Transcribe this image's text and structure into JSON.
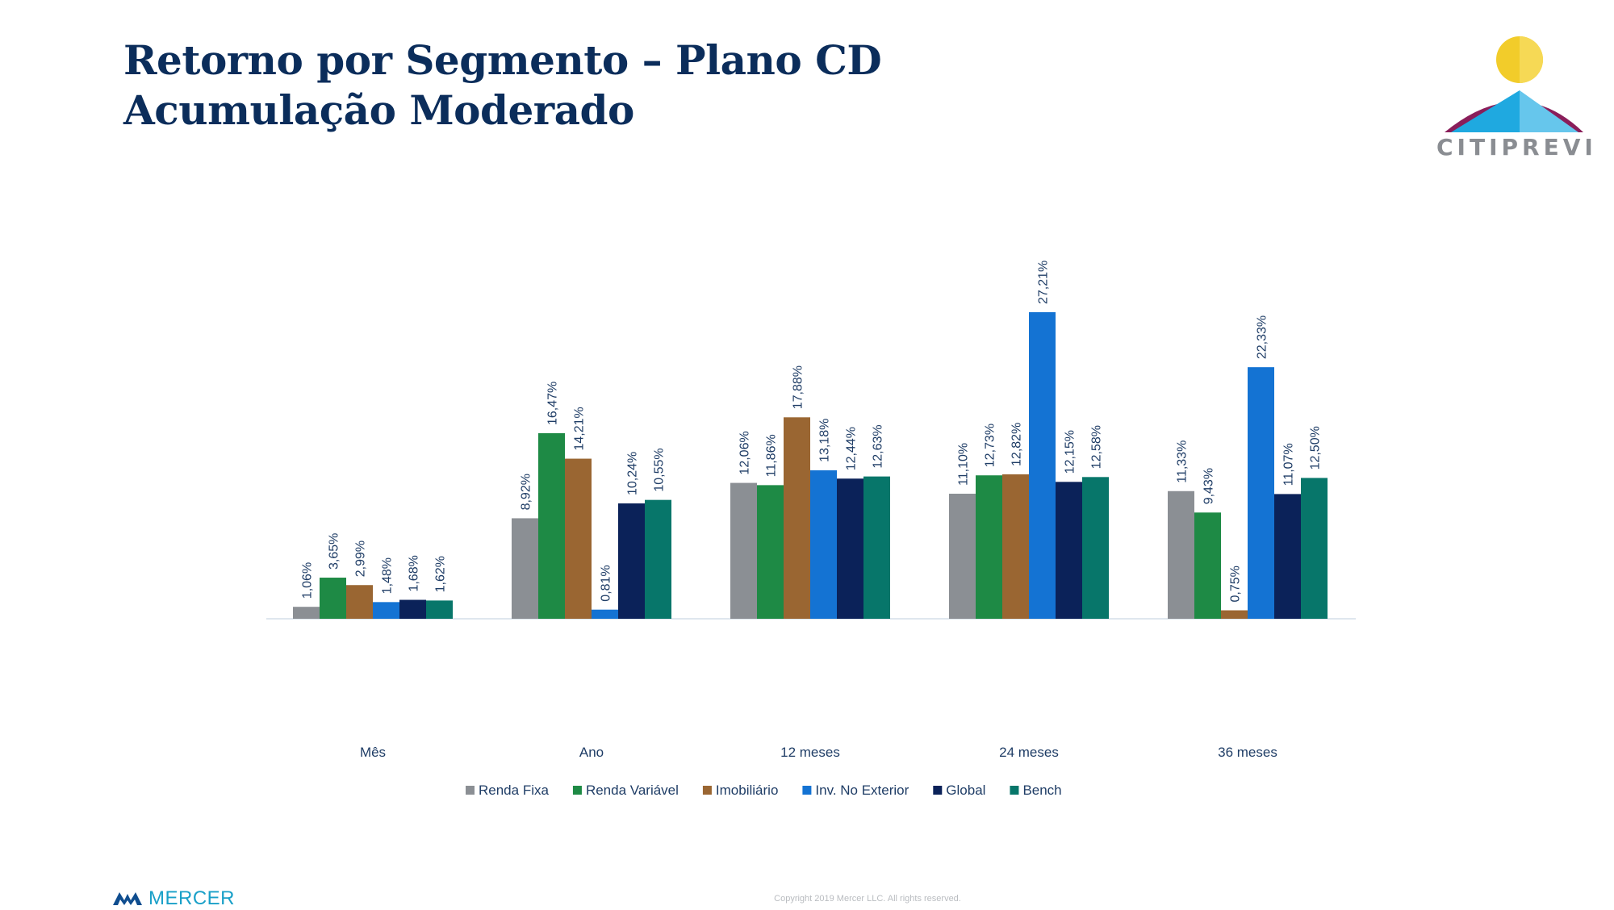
{
  "slide": {
    "title": "Retorno por Segmento – Plano CD Acumulação Moderado",
    "logo_text": "CITIPREVI",
    "footer_brand": "MERCER",
    "copyright": "Copyright 2019 Mercer LLC. All rights reserved."
  },
  "colors": {
    "title": "#0b2d5b",
    "label": "#1f3d66",
    "axis": "#dfe7ee"
  },
  "chart_data": {
    "type": "bar",
    "categories": [
      "Mês",
      "Ano",
      "12 meses",
      "24 meses",
      "36 meses"
    ],
    "series": [
      {
        "name": "Renda Fixa",
        "color": "#8b8f94",
        "values": [
          1.06,
          8.92,
          12.06,
          11.1,
          11.33
        ],
        "labels": [
          "1,06%",
          "8,92%",
          "12,06%",
          "11,10%",
          "11,33%"
        ]
      },
      {
        "name": "Renda Variável",
        "color": "#1e8a45",
        "values": [
          3.65,
          16.47,
          11.86,
          12.73,
          9.43
        ],
        "labels": [
          "3,65%",
          "16,47%",
          "11,86%",
          "12,73%",
          "9,43%"
        ]
      },
      {
        "name": "Imobiliário",
        "color": "#9a6632",
        "values": [
          2.99,
          14.21,
          17.88,
          12.82,
          0.75
        ],
        "labels": [
          "2,99%",
          "14,21%",
          "17,88%",
          "12,82%",
          "0,75%"
        ]
      },
      {
        "name": "Inv. No Exterior",
        "color": "#1473d3",
        "values": [
          1.48,
          0.81,
          13.18,
          27.21,
          22.33
        ],
        "labels": [
          "1,48%",
          "0,81%",
          "13,18%",
          "27,21%",
          "22,33%"
        ]
      },
      {
        "name": "Global",
        "color": "#0b2259",
        "values": [
          1.68,
          10.24,
          12.44,
          12.15,
          11.07
        ],
        "labels": [
          "1,68%",
          "10,24%",
          "12,44%",
          "12,15%",
          "11,07%"
        ]
      },
      {
        "name": "Bench",
        "color": "#07766a",
        "values": [
          1.62,
          10.55,
          12.63,
          12.58,
          12.5
        ],
        "labels": [
          "1,62%",
          "10,55%",
          "12,63%",
          "12,58%",
          "12,50%"
        ]
      }
    ],
    "ylim": [
      0,
      30
    ],
    "grid": false,
    "legend": "bottom"
  }
}
